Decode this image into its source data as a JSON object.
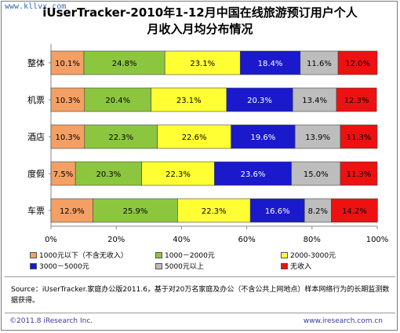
{
  "watermark": "www.kllvx.com",
  "title_line1": "iUserTracker-2010年1-12月中国在线旅游预订用户个人",
  "title_line2": "月收入月均分布情况",
  "colors": [
    "#f4a064",
    "#8cc63f",
    "#ffff33",
    "#1a1acc",
    "#bdbdbd",
    "#ee1111"
  ],
  "chart_data": {
    "type": "bar",
    "orientation": "horizontal",
    "stacked": "percent",
    "categories": [
      "整体",
      "机票",
      "酒店",
      "度假",
      "车票"
    ],
    "series": [
      {
        "name": "1000元以下（不含无收入）",
        "values": [
          10.1,
          10.3,
          10.3,
          7.5,
          12.9
        ]
      },
      {
        "name": "1000－2000元",
        "values": [
          24.8,
          20.4,
          22.3,
          20.3,
          25.9
        ]
      },
      {
        "name": "2000-3000元",
        "values": [
          23.1,
          23.1,
          22.6,
          22.3,
          22.3
        ]
      },
      {
        "name": "3000－5000元",
        "values": [
          18.4,
          20.3,
          19.6,
          23.6,
          16.6
        ]
      },
      {
        "name": "5000元以上",
        "values": [
          11.6,
          13.4,
          13.9,
          15.0,
          8.2
        ]
      },
      {
        "name": "无收入",
        "values": [
          12.0,
          12.3,
          11.3,
          11.3,
          14.2
        ]
      }
    ],
    "xlim": [
      0,
      100
    ],
    "xticks": [
      "0%",
      "20%",
      "40%",
      "60%",
      "80%",
      "100%"
    ],
    "grid": false,
    "legend": "bottom"
  },
  "source": "Source：iUserTracker.家庭办公版2011.6，基于对20万名家庭及办公（不含公共上网地点）样本网络行为的长期监测数据获得。",
  "footer_left": "©2011.8 iResearch Inc.",
  "footer_right": "www.iresearch.com.cn"
}
